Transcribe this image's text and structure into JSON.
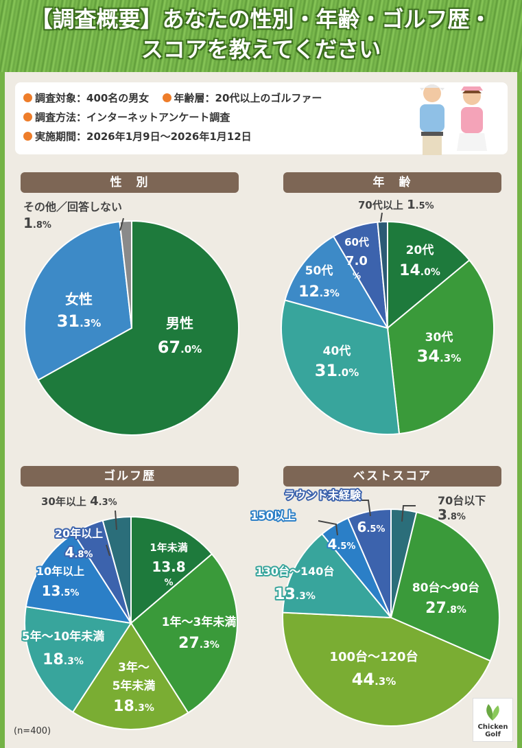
{
  "header": {
    "title_line1": "【調査概要】あなたの性別・年齢・ゴルフ歴・",
    "title_line2": "スコアを教えてください"
  },
  "info": {
    "target": "調査対象：400名の男女",
    "age_range": "年齢層：20代以上のゴルファー",
    "method": "調査方法：インターネットアンケート調査",
    "period": "実施期間：2026年1月9日〜2026年1月12日"
  },
  "sections": {
    "gender": "性　別",
    "age": "年　齢",
    "golf_history": "ゴルフ歴",
    "best_score": "ベストスコア"
  },
  "note": "(n=400)",
  "logo": {
    "line1": "Chicken",
    "line2": "Golf"
  },
  "colors": {
    "accent_orange": "#ee7d2a",
    "section_brown": "#7d6655",
    "grass_green": "#74b346"
  },
  "chart_data": [
    {
      "type": "pie",
      "title": "性　別",
      "slices": [
        {
          "label": "男性",
          "value": 67.0,
          "display": "67.0%",
          "color": "#1e7a3c"
        },
        {
          "label": "女性",
          "value": 31.3,
          "display": "31.3%",
          "color": "#3d8ac7"
        },
        {
          "label": "その他／回答しない",
          "value": 1.8,
          "display": "1.8%",
          "color": "#8a8a8a"
        }
      ]
    },
    {
      "type": "pie",
      "title": "年　齢",
      "slices": [
        {
          "label": "20代",
          "value": 14.0,
          "display": "14.0%",
          "color": "#1e7a3c"
        },
        {
          "label": "30代",
          "value": 34.3,
          "display": "34.3%",
          "color": "#3a9a3a"
        },
        {
          "label": "40代",
          "value": 31.0,
          "display": "31.0%",
          "color": "#38a59c"
        },
        {
          "label": "50代",
          "value": 12.3,
          "display": "12.3%",
          "color": "#3d8ac7"
        },
        {
          "label": "60代",
          "value": 7.0,
          "display": "7.0%",
          "color": "#3c63ad"
        },
        {
          "label": "70代以上",
          "value": 1.5,
          "display": "1.5%",
          "color": "#2b5a75"
        }
      ]
    },
    {
      "type": "pie",
      "title": "ゴルフ歴",
      "slices": [
        {
          "label": "1年未満",
          "value": 13.8,
          "display": "13.8%",
          "color": "#1e7a3c"
        },
        {
          "label": "1年〜3年未満",
          "value": 27.3,
          "display": "27.3%",
          "color": "#3a9a3a"
        },
        {
          "label": "3年〜5年未満",
          "value": 18.3,
          "display": "18.3%",
          "color": "#7aad33"
        },
        {
          "label": "5年〜10年未満",
          "value": 18.3,
          "display": "18.3%",
          "color": "#38a59c"
        },
        {
          "label": "10年以上",
          "value": 13.5,
          "display": "13.5%",
          "color": "#2b7fc7"
        },
        {
          "label": "20年以上",
          "value": 4.8,
          "display": "4.8%",
          "color": "#3c63ad"
        },
        {
          "label": "30年以上",
          "value": 4.3,
          "display": "4.3%",
          "color": "#2b6e7a"
        }
      ]
    },
    {
      "type": "pie",
      "title": "ベストスコア",
      "slices": [
        {
          "label": "70台以下",
          "value": 3.8,
          "display": "3.8%",
          "color": "#2b6e7a"
        },
        {
          "label": "80台〜90台",
          "value": 27.8,
          "display": "27.8%",
          "color": "#3a9a3a"
        },
        {
          "label": "100台〜120台",
          "value": 44.3,
          "display": "44.3%",
          "color": "#7aad33"
        },
        {
          "label": "130台〜140台",
          "value": 13.3,
          "display": "13.3%",
          "color": "#38a59c"
        },
        {
          "label": "150以上",
          "value": 4.5,
          "display": "4.5%",
          "color": "#2b7fc7"
        },
        {
          "label": "ラウンド未経験",
          "value": 6.5,
          "display": "6.5%",
          "color": "#3c63ad"
        }
      ]
    }
  ]
}
